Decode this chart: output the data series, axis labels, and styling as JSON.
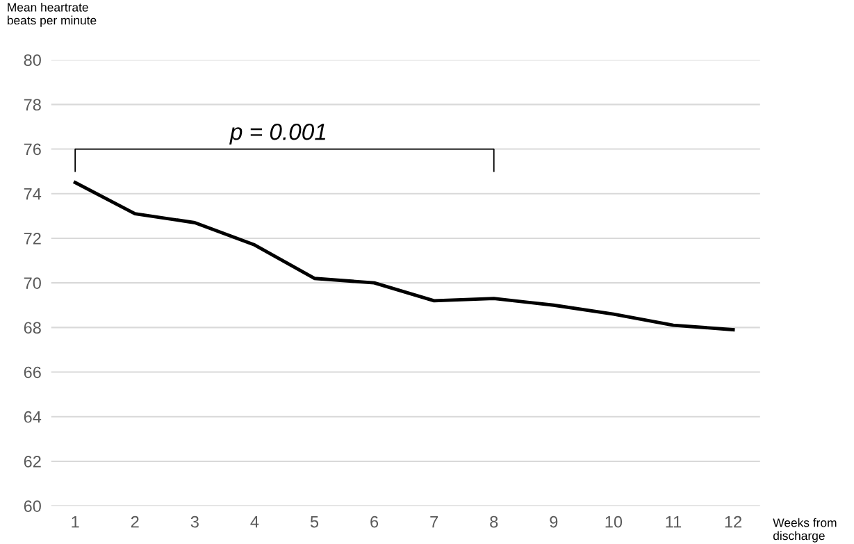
{
  "chart_data": {
    "type": "line",
    "ylabel": "Mean heartrate\nbeats per minute",
    "xlabel": "Weeks from\ndischarge",
    "categories": [
      "1",
      "2",
      "3",
      "4",
      "5",
      "6",
      "7",
      "8",
      "9",
      "10",
      "11",
      "12"
    ],
    "series": [
      {
        "color": "#000000",
        "values": [
          74.5,
          73.1,
          72.7,
          71.7,
          70.2,
          70.0,
          69.2,
          69.3,
          69.0,
          68.6,
          68.1,
          67.9
        ]
      }
    ],
    "ylim": [
      60,
      80
    ],
    "yticks": [
      60,
      62,
      64,
      66,
      68,
      70,
      72,
      74,
      76,
      78,
      80
    ],
    "grid": "y",
    "legend": false,
    "marker": "none",
    "line_style": "solid",
    "annotations": [
      "p = 0.001"
    ]
  }
}
